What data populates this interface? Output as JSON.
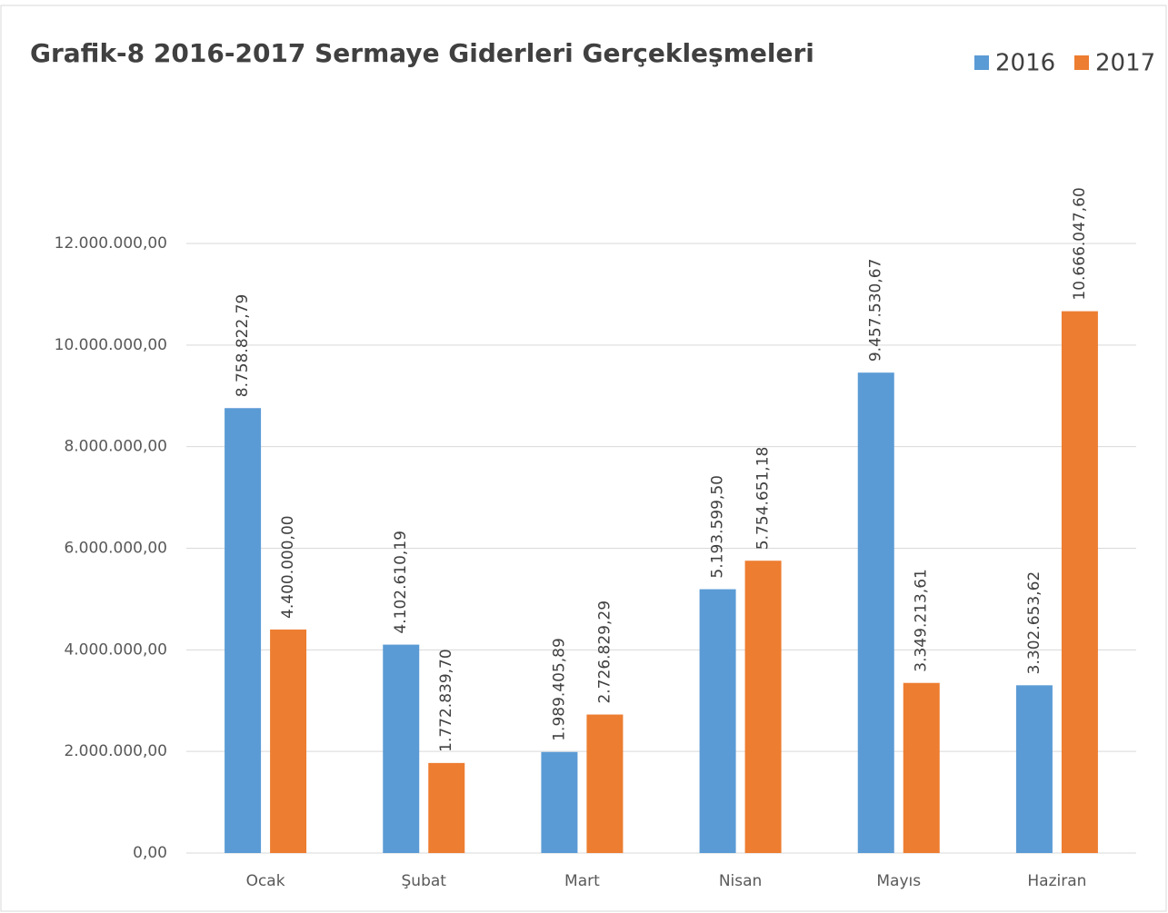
{
  "chart_data": {
    "type": "bar",
    "title": "Grafik-8 2016-2017 Sermaye Giderleri Gerçekleşmeleri",
    "categories": [
      "Ocak",
      "Şubat",
      "Mart",
      "Nisan",
      "Mayıs",
      "Haziran"
    ],
    "series": [
      {
        "name": "2016",
        "color": "#5b9bd5",
        "values": [
          8758822.79,
          4102610.19,
          1989405.89,
          5193599.5,
          9457530.67,
          3302653.62
        ],
        "value_labels": [
          "8.758.822,79",
          "4.102.610,19",
          "1.989.405,89",
          "5.193.599,50",
          "9.457.530,67",
          "3.302.653,62"
        ]
      },
      {
        "name": "2017",
        "color": "#ed7d31",
        "values": [
          4400000.0,
          1772839.7,
          2726829.29,
          5754651.18,
          3349213.61,
          10666047.6
        ],
        "value_labels": [
          "4.400.000,00",
          "1.772.839,70",
          "2.726.829,29",
          "5.754.651,18",
          "3.349.213,61",
          "10.666.047,60"
        ]
      }
    ],
    "ylim": [
      0,
      12000000
    ],
    "yticks": [
      {
        "value": 0,
        "label": "0,00"
      },
      {
        "value": 2000000,
        "label": "2.000.000,00"
      },
      {
        "value": 4000000,
        "label": "4.000.000,00"
      },
      {
        "value": 6000000,
        "label": "6.000.000,00"
      },
      {
        "value": 8000000,
        "label": "8.000.000,00"
      },
      {
        "value": 10000000,
        "label": "10.000.000,00"
      },
      {
        "value": 12000000,
        "label": "12.000.000,00"
      }
    ],
    "grid": true,
    "legend": "top-right"
  }
}
